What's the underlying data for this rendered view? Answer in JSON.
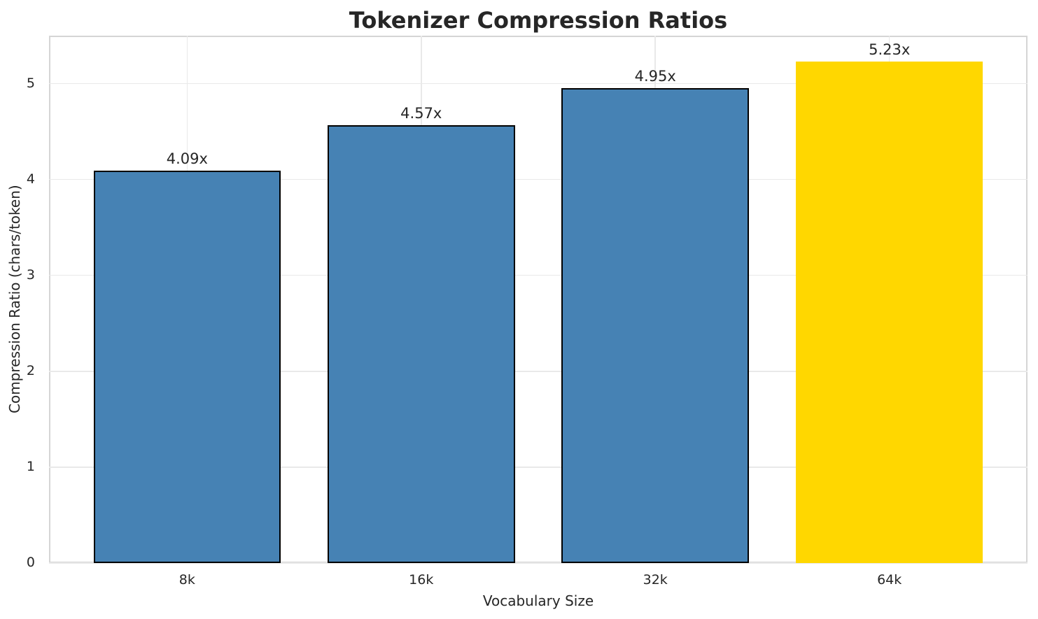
{
  "chart_data": {
    "type": "bar",
    "title": "Tokenizer Compression Ratios",
    "xlabel": "Vocabulary Size",
    "ylabel": "Compression Ratio (chars/token)",
    "categories": [
      "8k",
      "16k",
      "32k",
      "64k"
    ],
    "values": [
      4.09,
      4.57,
      4.95,
      5.23
    ],
    "bar_labels": [
      "4.09x",
      "4.57x",
      "4.95x",
      "5.23x"
    ],
    "bar_colors": [
      "#4682b4",
      "#4682b4",
      "#4682b4",
      "#ffd700"
    ],
    "bar_edge_colors": [
      "#000000",
      "#000000",
      "#000000",
      "none"
    ],
    "yticks": [
      "0",
      "1",
      "2",
      "3",
      "4",
      "5"
    ],
    "ytick_values": [
      0,
      1,
      2,
      3,
      4,
      5
    ],
    "ylim": [
      0,
      5.5
    ],
    "grid": true,
    "legend": false,
    "grid_color": "#e9e9e9",
    "spine_color": "#d5d5d5",
    "highlight_color": "#ffd700",
    "base_color": "#4682b4",
    "text_color": "#262626",
    "background": "#ffffff"
  }
}
